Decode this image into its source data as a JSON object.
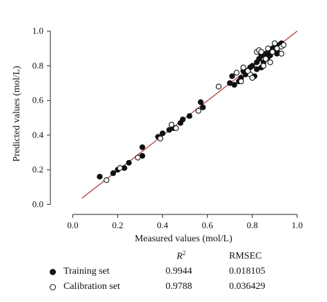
{
  "chart_data": {
    "type": "scatter",
    "xlabel": "Measured values (mol/L)",
    "ylabel": "Predicted values (mol/L)",
    "xlim": [
      -0.1,
      1.05
    ],
    "ylim": [
      -0.05,
      1.1
    ],
    "xticks": [
      "0.0",
      "0.2",
      "0.4",
      "0.6",
      "0.8",
      "1.0"
    ],
    "yticks": [
      "0.0",
      "0.2",
      "0.4",
      "0.6",
      "0.8",
      "1.0"
    ],
    "xtick_values": [
      0.0,
      0.2,
      0.4,
      0.6,
      0.8,
      1.0
    ],
    "ytick_values": [
      0.0,
      0.2,
      0.4,
      0.6,
      0.8,
      1.0
    ],
    "grid": false,
    "line_color": "#b03030",
    "fit_line": {
      "x": [
        0.04,
        1.0
      ],
      "y": [
        0.035,
        1.0
      ]
    },
    "series": [
      {
        "name": "Training set",
        "marker": "filled",
        "points": [
          [
            0.12,
            0.16
          ],
          [
            0.18,
            0.18
          ],
          [
            0.2,
            0.2
          ],
          [
            0.23,
            0.21
          ],
          [
            0.25,
            0.24
          ],
          [
            0.31,
            0.28
          ],
          [
            0.31,
            0.33
          ],
          [
            0.38,
            0.39
          ],
          [
            0.4,
            0.41
          ],
          [
            0.43,
            0.43
          ],
          [
            0.45,
            0.44
          ],
          [
            0.48,
            0.47
          ],
          [
            0.49,
            0.49
          ],
          [
            0.52,
            0.51
          ],
          [
            0.57,
            0.59
          ],
          [
            0.58,
            0.56
          ],
          [
            0.7,
            0.7
          ],
          [
            0.72,
            0.69
          ],
          [
            0.74,
            0.71
          ],
          [
            0.75,
            0.73
          ],
          [
            0.77,
            0.75
          ],
          [
            0.78,
            0.77
          ],
          [
            0.79,
            0.79
          ],
          [
            0.8,
            0.8
          ],
          [
            0.82,
            0.82
          ],
          [
            0.83,
            0.84
          ],
          [
            0.84,
            0.86
          ],
          [
            0.85,
            0.82
          ],
          [
            0.86,
            0.87
          ],
          [
            0.87,
            0.85
          ],
          [
            0.88,
            0.88
          ],
          [
            0.89,
            0.9
          ],
          [
            0.9,
            0.91
          ],
          [
            0.91,
            0.89
          ],
          [
            0.92,
            0.92
          ],
          [
            0.93,
            0.93
          ],
          [
            0.91,
            0.87
          ],
          [
            0.88,
            0.86
          ],
          [
            0.82,
            0.78
          ],
          [
            0.81,
            0.74
          ],
          [
            0.76,
            0.77
          ],
          [
            0.71,
            0.74
          ],
          [
            0.84,
            0.79
          ]
        ]
      },
      {
        "name": "Calibration set",
        "marker": "open",
        "points": [
          [
            0.15,
            0.14
          ],
          [
            0.21,
            0.21
          ],
          [
            0.29,
            0.27
          ],
          [
            0.39,
            0.38
          ],
          [
            0.44,
            0.46
          ],
          [
            0.46,
            0.44
          ],
          [
            0.56,
            0.54
          ],
          [
            0.65,
            0.68
          ],
          [
            0.73,
            0.76
          ],
          [
            0.75,
            0.71
          ],
          [
            0.76,
            0.79
          ],
          [
            0.79,
            0.75
          ],
          [
            0.8,
            0.73
          ],
          [
            0.82,
            0.88
          ],
          [
            0.83,
            0.89
          ],
          [
            0.84,
            0.88
          ],
          [
            0.86,
            0.84
          ],
          [
            0.87,
            0.9
          ],
          [
            0.88,
            0.82
          ],
          [
            0.89,
            0.88
          ],
          [
            0.9,
            0.93
          ],
          [
            0.91,
            0.9
          ],
          [
            0.93,
            0.87
          ],
          [
            0.93,
            0.91
          ],
          [
            0.94,
            0.92
          ],
          [
            0.78,
            0.77
          ],
          [
            0.85,
            0.8
          ]
        ]
      }
    ]
  },
  "legend": {
    "r2_header_base": "R",
    "r2_header_sup": "2",
    "rmse_header": "RMSEC",
    "rows": [
      {
        "label": "Training set",
        "r2": "0.9944",
        "rmse": "0.018105"
      },
      {
        "label": "Calibration set",
        "r2": "0.9788",
        "rmse": "0.036429"
      }
    ]
  }
}
